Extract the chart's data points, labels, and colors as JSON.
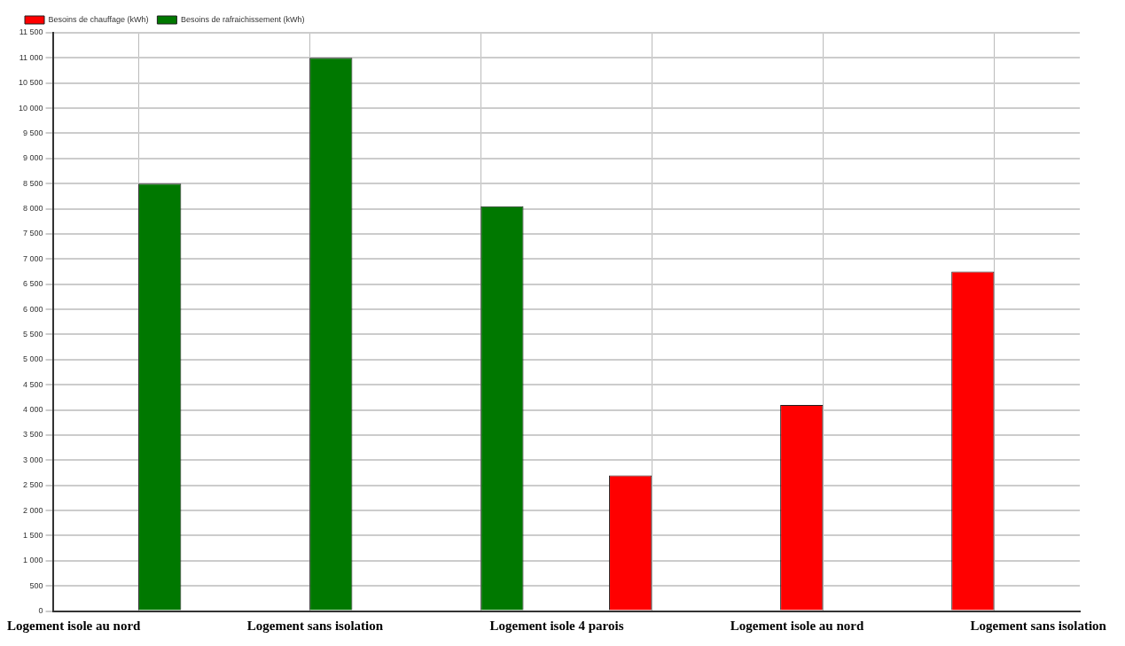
{
  "chart_data": {
    "type": "bar",
    "categories": [
      null,
      null,
      null,
      null,
      null,
      null
    ],
    "series": [
      {
        "name": "Besoins de chauffage (kWh)",
        "color": "#ff0000",
        "values": [
          null,
          null,
          null,
          2700,
          4100,
          6750
        ]
      },
      {
        "name": "Besoins de rafraichissement (kWh)",
        "color": "#007800",
        "values": [
          8500,
          11000,
          8050,
          null,
          null,
          null
        ]
      }
    ],
    "ylim": [
      0,
      11500
    ],
    "yticks": [
      0,
      500,
      {
        "value": 1000,
        "label": "1 000"
      },
      {
        "value": 1500,
        "label": "1 500"
      },
      {
        "value": 2000,
        "label": "2 000"
      },
      {
        "value": 2500,
        "label": "2 500"
      },
      {
        "value": 3000,
        "label": "3 000"
      },
      {
        "value": 3500,
        "label": "3 500"
      },
      {
        "value": 4000,
        "label": "4 000"
      },
      {
        "value": 4500,
        "label": "4 500"
      },
      {
        "value": 5000,
        "label": "5 000"
      },
      {
        "value": 5500,
        "label": "5 500"
      },
      {
        "value": 6000,
        "label": "6 000"
      },
      {
        "value": 6500,
        "label": "6 500"
      },
      {
        "value": 7000,
        "label": "7 000"
      },
      {
        "value": 7500,
        "label": "7 500"
      },
      {
        "value": 8000,
        "label": "8 000"
      },
      {
        "value": 8500,
        "label": "8 500"
      },
      {
        "value": 9000,
        "label": "9 000"
      },
      {
        "value": 9500,
        "label": "9 500"
      },
      {
        "value": 10000,
        "label": "10 000"
      },
      {
        "value": 10500,
        "label": "10 500"
      },
      {
        "value": 11000,
        "label": "11 000"
      },
      {
        "value": 11500,
        "label": "11 500"
      }
    ],
    "grid": true,
    "legend": "top left",
    "annotations": [
      "Logement isole au nord",
      "Logement sans isolation",
      "Logement isole 4 parois",
      "Logement isole au nord",
      "Logement sans isolation"
    ]
  }
}
